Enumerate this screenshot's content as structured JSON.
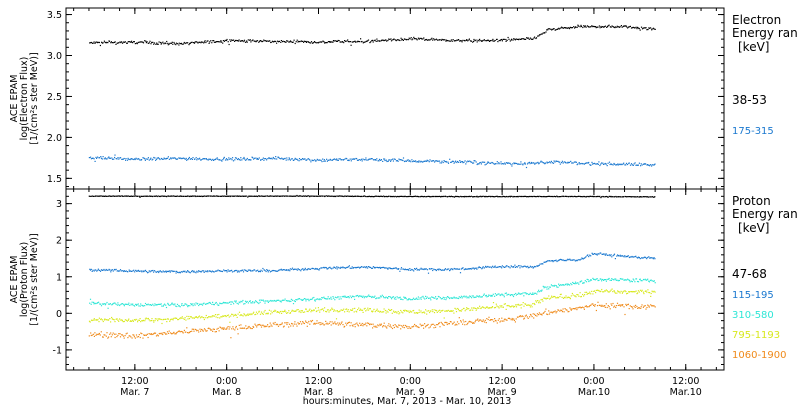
{
  "figure": {
    "xlabel": "hours:minutes, Mar.  7, 2013 - Mar. 10, 2013",
    "x_ticks": [
      {
        "l1": "12:00",
        "l2": "Mar. 7",
        "hour": 12
      },
      {
        "l1": "0:00",
        "l2": "Mar. 8",
        "hour": 24
      },
      {
        "l1": "12:00",
        "l2": "Mar. 8",
        "hour": 36
      },
      {
        "l1": "0:00",
        "l2": "Mar. 9",
        "hour": 48
      },
      {
        "l1": "12:00",
        "l2": "Mar. 9",
        "hour": 60
      },
      {
        "l1": "0:00",
        "l2": "Mar.10",
        "hour": 72
      },
      {
        "l1": "12:00",
        "l2": "Mar.10",
        "hour": 84
      }
    ],
    "xlim_hours": [
      3,
      89
    ]
  },
  "chart_data": [
    {
      "type": "scatter",
      "ylabel_lines": [
        "ACE EPAM",
        "log(Electron Flux)",
        "[1/(cm²s ster MeV)]"
      ],
      "ylim": [
        1.37,
        3.58
      ],
      "y_ticks": [
        1.5,
        2.0,
        2.5,
        3.0,
        3.5
      ],
      "y_tick_labels": [
        "1.5",
        "2.0",
        "2.5",
        "3.0",
        "3.5"
      ],
      "legend_title_lines": [
        "Electron",
        "Energy ran",
        "[keV]"
      ],
      "series": [
        {
          "name": "38-53",
          "color": "#000000",
          "x_hours": [
            6,
            12,
            18,
            24,
            30,
            36,
            42,
            48,
            54,
            59,
            64,
            66,
            70,
            76,
            80
          ],
          "y": [
            3.16,
            3.17,
            3.15,
            3.19,
            3.18,
            3.17,
            3.18,
            3.21,
            3.19,
            3.19,
            3.21,
            3.32,
            3.36,
            3.36,
            3.33
          ]
        },
        {
          "name": "175-315",
          "color": "#1a78cf",
          "x_hours": [
            6,
            12,
            18,
            24,
            30,
            36,
            42,
            48,
            54,
            60,
            64,
            66,
            70,
            76,
            80
          ],
          "y": [
            1.76,
            1.74,
            1.75,
            1.74,
            1.75,
            1.73,
            1.74,
            1.72,
            1.71,
            1.69,
            1.69,
            1.71,
            1.69,
            1.68,
            1.67
          ]
        }
      ]
    },
    {
      "type": "scatter",
      "ylabel_lines": [
        "ACE EPAM",
        "log(Proton Flux)",
        "[1/(cm²s ster MeV)]"
      ],
      "ylim": [
        -1.55,
        3.4
      ],
      "y_ticks": [
        -1,
        0,
        1,
        2,
        3
      ],
      "y_tick_labels": [
        "-1",
        "0",
        "1",
        "2",
        "3"
      ],
      "legend_title_lines": [
        "Proton",
        "Energy ran",
        "[keV]"
      ],
      "series": [
        {
          "name": "47-68",
          "color": "#000000",
          "x_hours": [
            6,
            12,
            24,
            36,
            48,
            60,
            66,
            72,
            80
          ],
          "y": [
            3.22,
            3.22,
            3.22,
            3.22,
            3.21,
            3.21,
            3.21,
            3.21,
            3.2
          ]
        },
        {
          "name": "115-195",
          "color": "#1a78cf",
          "x_hours": [
            6,
            12,
            18,
            24,
            30,
            36,
            42,
            48,
            54,
            60,
            64,
            66,
            70,
            72,
            76,
            80
          ],
          "y": [
            1.2,
            1.17,
            1.15,
            1.18,
            1.18,
            1.25,
            1.28,
            1.22,
            1.22,
            1.3,
            1.28,
            1.45,
            1.48,
            1.65,
            1.57,
            1.52
          ]
        },
        {
          "name": "310-580",
          "color": "#2ee6d6",
          "x_hours": [
            6,
            12,
            18,
            24,
            30,
            36,
            42,
            48,
            54,
            60,
            64,
            66,
            70,
            72,
            76,
            80
          ],
          "y": [
            0.28,
            0.25,
            0.24,
            0.3,
            0.35,
            0.42,
            0.48,
            0.42,
            0.45,
            0.52,
            0.55,
            0.75,
            0.85,
            0.95,
            0.93,
            0.9
          ]
        },
        {
          "name": "795-1193",
          "color": "#d8e81e",
          "x_hours": [
            6,
            12,
            18,
            24,
            30,
            36,
            42,
            48,
            54,
            60,
            64,
            66,
            70,
            72,
            76,
            80
          ],
          "y": [
            -0.15,
            -0.18,
            -0.12,
            -0.05,
            0.05,
            0.1,
            0.12,
            0.05,
            0.1,
            0.2,
            0.25,
            0.45,
            0.5,
            0.62,
            0.6,
            0.6
          ]
        },
        {
          "name": "1060-1900",
          "color": "#ef8a1a",
          "x_hours": [
            6,
            12,
            18,
            24,
            30,
            36,
            42,
            48,
            54,
            60,
            64,
            66,
            70,
            72,
            76,
            80
          ],
          "y": [
            -0.55,
            -0.6,
            -0.5,
            -0.4,
            -0.3,
            -0.25,
            -0.3,
            -0.35,
            -0.25,
            -0.15,
            -0.05,
            0.05,
            0.15,
            0.25,
            0.22,
            0.2
          ]
        }
      ]
    }
  ]
}
